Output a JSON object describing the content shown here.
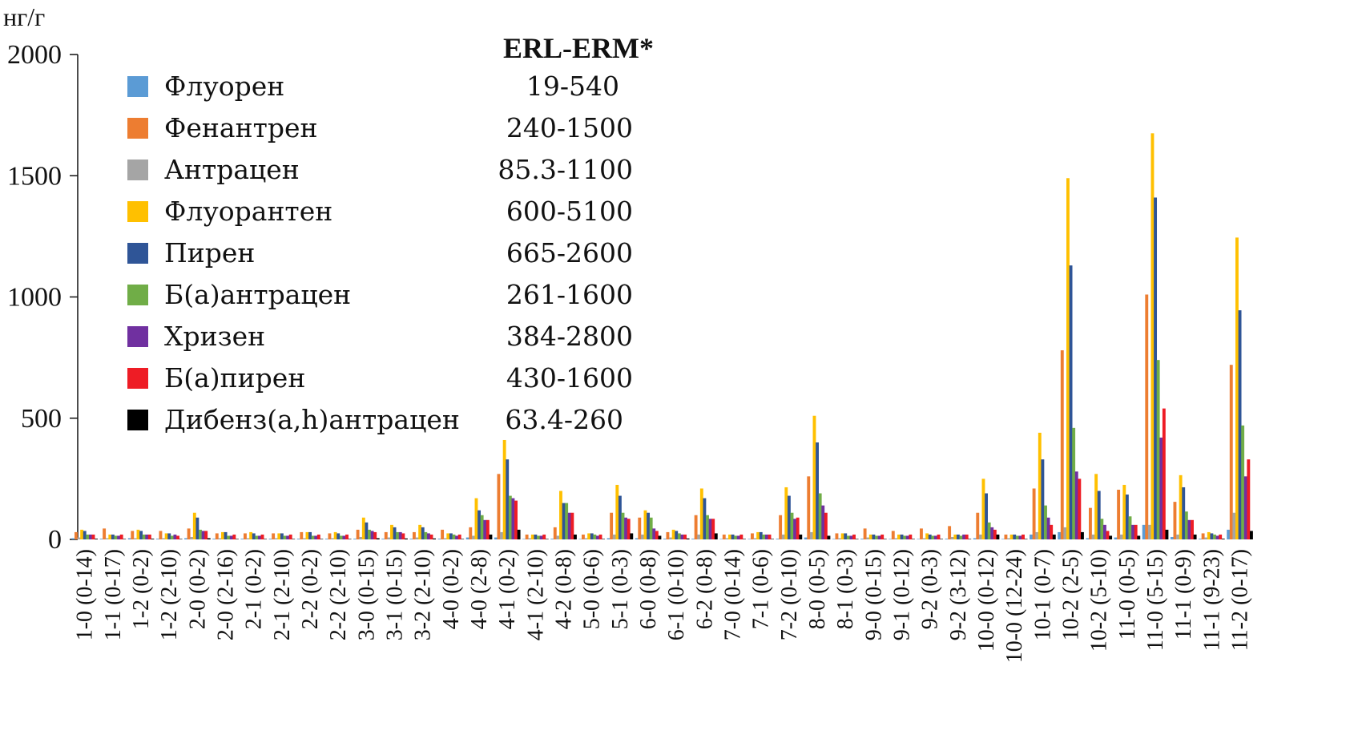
{
  "chart_data": {
    "type": "bar",
    "ylabel": "нг/г",
    "ylim": [
      0,
      2000
    ],
    "yticks": [
      "0",
      "500",
      "1000",
      "1500",
      "2000"
    ],
    "legend_header": "ERL-ERM*",
    "categories": [
      "1-0 (0-14)",
      "1-1 (0-17)",
      "1-2 (0-2)",
      "1-2 (2-10)",
      "2-0 (0-2)",
      "2-0 (2-16)",
      "2-1 (0-2)",
      "2-1 (2-10)",
      "2-2 (0-2)",
      "2-2 (2-10)",
      "3-0 (0-15)",
      "3-1 (0-15)",
      "3-2 (2-10)",
      "4-0 (0-2)",
      "4-0 (2-8)",
      "4-1 (0-2)",
      "4-1 (2-10)",
      "4-2 (0-8)",
      "5-0 (0-6)",
      "5-1 (0-3)",
      "6-0 (0-8)",
      "6-1 (0-10)",
      "6-2 (0-8)",
      "7-0 (0-14)",
      "7-1 (0-6)",
      "7-2 (0-10)",
      "8-0 (0-5)",
      "8-1 (0-3)",
      "9-0 (0-15)",
      "9-1 (0-12)",
      "9-2 (0-3)",
      "9-2 (3-12)",
      "10-0 (0-12)",
      "10-0 (12-24)",
      "10-1 (0-7)",
      "10-2 (2-5)",
      "10-2 (5-10)",
      "11-0 (0-5)",
      "11-0 (5-15)",
      "11-1 (0-9)",
      "11-1 (9-23)",
      "11-2 (0-17)"
    ],
    "series": [
      {
        "name": "Флуорен",
        "range": "19-540",
        "color": "#5b9bd5",
        "values": [
          5,
          3,
          5,
          3,
          5,
          3,
          3,
          3,
          3,
          3,
          3,
          3,
          3,
          3,
          8,
          8,
          2,
          3,
          2,
          5,
          5,
          3,
          3,
          2,
          2,
          3,
          8,
          2,
          3,
          2,
          2,
          3,
          5,
          2,
          20,
          30,
          5,
          8,
          60,
          10,
          3,
          40
        ]
      },
      {
        "name": "Фенантрен",
        "range": "240-1500",
        "color": "#ed7d31",
        "values": [
          30,
          45,
          35,
          35,
          45,
          25,
          25,
          25,
          30,
          25,
          40,
          30,
          30,
          40,
          50,
          270,
          20,
          50,
          20,
          110,
          90,
          30,
          100,
          20,
          25,
          100,
          260,
          25,
          45,
          35,
          45,
          55,
          110,
          20,
          210,
          780,
          130,
          205,
          1010,
          155,
          25,
          720
        ]
      },
      {
        "name": "Антрацен",
        "range": "85.3-1100",
        "color": "#a5a5a5",
        "values": [
          8,
          5,
          5,
          5,
          10,
          5,
          5,
          5,
          5,
          5,
          10,
          8,
          8,
          5,
          15,
          30,
          5,
          15,
          5,
          20,
          20,
          8,
          20,
          5,
          5,
          20,
          30,
          5,
          8,
          5,
          5,
          10,
          20,
          5,
          30,
          50,
          20,
          20,
          60,
          20,
          8,
          110
        ]
      },
      {
        "name": "Флуорантен",
        "range": "600-5100",
        "color": "#ffc000",
        "values": [
          40,
          20,
          40,
          25,
          110,
          30,
          30,
          25,
          30,
          30,
          90,
          60,
          60,
          25,
          170,
          410,
          20,
          200,
          25,
          225,
          120,
          40,
          210,
          20,
          30,
          215,
          510,
          25,
          20,
          20,
          25,
          20,
          250,
          20,
          440,
          1490,
          270,
          225,
          1675,
          265,
          30,
          1245
        ]
      },
      {
        "name": "Пирен",
        "range": "665-2600",
        "color": "#2f5597",
        "values": [
          35,
          20,
          35,
          25,
          90,
          30,
          25,
          25,
          30,
          25,
          70,
          50,
          50,
          25,
          120,
          330,
          20,
          150,
          25,
          180,
          110,
          35,
          170,
          20,
          30,
          180,
          400,
          25,
          20,
          20,
          20,
          20,
          190,
          20,
          330,
          1130,
          200,
          185,
          1410,
          215,
          25,
          945
        ]
      },
      {
        "name": "Б(а)антрацен",
        "range": "261-1600",
        "color": "#70ad47",
        "values": [
          20,
          15,
          20,
          15,
          40,
          15,
          15,
          15,
          15,
          15,
          40,
          30,
          30,
          20,
          100,
          180,
          15,
          150,
          20,
          110,
          90,
          25,
          100,
          15,
          20,
          110,
          190,
          15,
          15,
          15,
          15,
          15,
          70,
          15,
          140,
          460,
          85,
          95,
          740,
          115,
          20,
          470
        ]
      },
      {
        "name": "Хризен",
        "range": "384-2800",
        "color": "#7030a0",
        "values": [
          20,
          15,
          20,
          20,
          35,
          15,
          15,
          15,
          15,
          15,
          35,
          30,
          25,
          15,
          80,
          170,
          15,
          110,
          15,
          90,
          45,
          20,
          85,
          15,
          20,
          85,
          140,
          15,
          15,
          15,
          15,
          20,
          50,
          15,
          90,
          280,
          60,
          60,
          420,
          80,
          15,
          260
        ]
      },
      {
        "name": "Б(а)пирен",
        "range": "430-1600",
        "color": "#ee1c25",
        "values": [
          20,
          20,
          20,
          15,
          35,
          20,
          20,
          20,
          20,
          20,
          30,
          25,
          20,
          20,
          80,
          160,
          20,
          110,
          20,
          85,
          35,
          20,
          85,
          20,
          20,
          90,
          110,
          20,
          20,
          20,
          20,
          20,
          40,
          20,
          60,
          250,
          35,
          60,
          540,
          80,
          20,
          330
        ]
      },
      {
        "name": "Дибенз(a,h)антрацен",
        "range": "63.4-260",
        "color": "#000000",
        "values": [
          3,
          2,
          3,
          2,
          5,
          2,
          2,
          2,
          2,
          2,
          5,
          4,
          4,
          2,
          20,
          40,
          2,
          20,
          2,
          25,
          15,
          4,
          25,
          2,
          2,
          20,
          15,
          2,
          2,
          2,
          2,
          2,
          20,
          2,
          20,
          30,
          15,
          15,
          40,
          20,
          3,
          35
        ]
      }
    ]
  }
}
